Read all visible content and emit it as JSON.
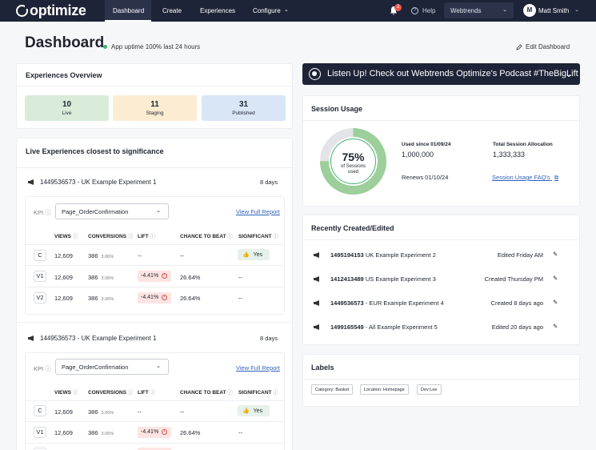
{
  "nav": {
    "logo": "optimize",
    "links": [
      "Dashboard",
      "Create",
      "Experiences",
      "Configure"
    ],
    "notifications": "2",
    "help": "Help",
    "workspace": "Webtrends",
    "user_initial": "M",
    "user_name": "Matt Smith"
  },
  "header": {
    "title": "Dashboard",
    "uptime": "App uptime 100% last 24 hours",
    "edit": "Edit Dashboard"
  },
  "overview": {
    "title": "Experiences Overview",
    "stats": [
      {
        "value": "10",
        "label": "Live",
        "color": "#d9ecd9"
      },
      {
        "value": "11",
        "label": "Staging",
        "color": "#fbecd2"
      },
      {
        "value": "31",
        "label": "Published",
        "color": "#d8e6f6"
      }
    ]
  },
  "live": {
    "title": "Live Experiences closest to significance",
    "kpi_label": "KPI",
    "kpi_value": "Page_OrderConfirmation",
    "view_report": "View Full Report",
    "headers": [
      "VIEWS",
      "CONVERSIONS",
      "LIFT",
      "CHANCE TO BEAT",
      "SIGNIFICANT"
    ],
    "experiments": [
      {
        "name": "1449536573 - UK Example Experiment 1",
        "days": "8 days",
        "rows": [
          {
            "variant": "C",
            "views": "12,609",
            "conv": "386",
            "rate": "3.06%",
            "lift": "--",
            "ctb": "--",
            "sig": "Yes"
          },
          {
            "variant": "V1",
            "views": "12,609",
            "conv": "386",
            "rate": "3.06%",
            "lift": "-4.41%",
            "ctb": "26.64%",
            "sig": "--"
          },
          {
            "variant": "V2",
            "views": "12,609",
            "conv": "386",
            "rate": "3.06%",
            "lift": "-4.41%",
            "ctb": "26.64%",
            "sig": "--"
          }
        ]
      },
      {
        "name": "1449536573 - UK Example Experiment 1",
        "days": "8 days",
        "rows": [
          {
            "variant": "C",
            "views": "12,609",
            "conv": "386",
            "rate": "3.06%",
            "lift": "--",
            "ctb": "--",
            "sig": "Yes"
          },
          {
            "variant": "V1",
            "views": "12,609",
            "conv": "386",
            "rate": "3.06%",
            "lift": "-4.41%",
            "ctb": "26.64%",
            "sig": "--"
          }
        ]
      }
    ]
  },
  "banner": {
    "text": "Listen Up! Check out Webtrends Optimize's Podcast #TheBigLift"
  },
  "session": {
    "title": "Session Usage",
    "percent": "75%",
    "percent_value": 75,
    "pct_label": "of Sessions used",
    "used_label": "Used since 01/09/24",
    "used_value": "1,000,000",
    "total_label": "Total Session Allocation",
    "total_value": "1,333,333",
    "renews": "Renews 01/10/24",
    "faq": "Session Usage FAQ's"
  },
  "recent": {
    "title": "Recently Created/Edited",
    "items": [
      {
        "id": "1495194153",
        "name": "UK Example Experiment 2",
        "time": "Edited Friday AM"
      },
      {
        "id": "1412413489",
        "name": "US Example Experiment 3",
        "time": "Created Thursday PM"
      },
      {
        "id": "1449536573",
        "name": "- EUR Example Experiment 4",
        "time": "Created 8 days ago"
      },
      {
        "id": "1499165549",
        "name": "- All Example Experiment 5",
        "time": "Edited 20 days ago"
      }
    ]
  },
  "labels": {
    "title": "Labels",
    "chips": [
      "Category: Basket",
      "Location: Homepage",
      "Dev:Lee"
    ]
  }
}
